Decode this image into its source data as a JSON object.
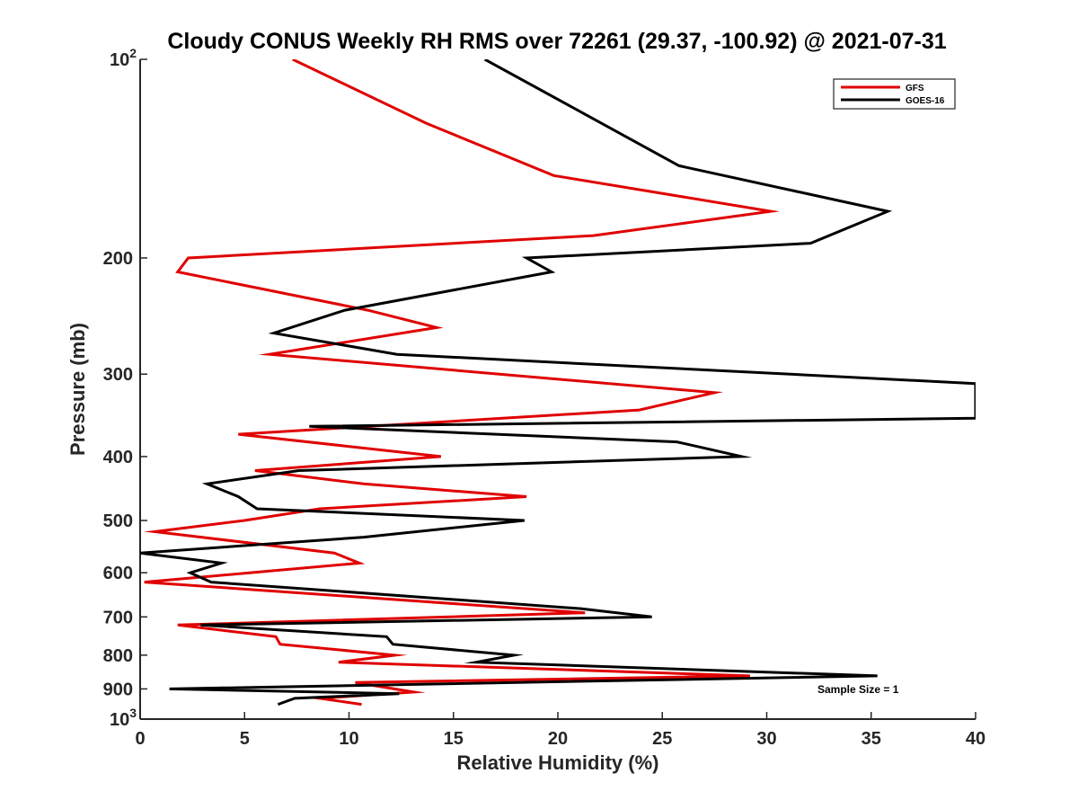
{
  "chart_data": {
    "type": "line",
    "title": "Cloudy CONUS Weekly RH RMS over 72261 (29.37, -100.92) @ 2021-07-31",
    "xlabel": "Relative Humidity (%)",
    "ylabel": "Pressure (mb)",
    "xlim": [
      0,
      40
    ],
    "ylim": [
      100,
      1000
    ],
    "y_scale": "log",
    "y_reversed": true,
    "x_ticks": [
      "0",
      "5",
      "10",
      "15",
      "20",
      "25",
      "30",
      "35",
      "40"
    ],
    "y_ticks": [
      {
        "value": 100,
        "label": "10",
        "sup": "2"
      },
      {
        "value": 200,
        "label": "200"
      },
      {
        "value": 300,
        "label": "300"
      },
      {
        "value": 400,
        "label": "400"
      },
      {
        "value": 500,
        "label": "500"
      },
      {
        "value": 600,
        "label": "600"
      },
      {
        "value": 700,
        "label": "700"
      },
      {
        "value": 800,
        "label": "800"
      },
      {
        "value": 900,
        "label": "900"
      },
      {
        "value": 1000,
        "label": "10",
        "sup": "3"
      }
    ],
    "legend_position": "top-right",
    "annotation": "Sample Size = 1",
    "series": [
      {
        "name": "GFS",
        "color": "#e00000",
        "points": [
          [
            7.3,
            100
          ],
          [
            13.7,
            125
          ],
          [
            19.8,
            150
          ],
          [
            30.2,
            170
          ],
          [
            21.7,
            185
          ],
          [
            2.3,
            200
          ],
          [
            1.8,
            210
          ],
          [
            10.9,
            240
          ],
          [
            14.2,
            255
          ],
          [
            6.2,
            280
          ],
          [
            27.5,
            320
          ],
          [
            23.9,
            340
          ],
          [
            4.7,
            370
          ],
          [
            14.4,
            400
          ],
          [
            5.5,
            420
          ],
          [
            10.7,
            440
          ],
          [
            18.5,
            460
          ],
          [
            8.6,
            480
          ],
          [
            5.0,
            500
          ],
          [
            0.7,
            520
          ],
          [
            9.3,
            560
          ],
          [
            10.5,
            580
          ],
          [
            0.2,
            620
          ],
          [
            21.3,
            690
          ],
          [
            1.8,
            720
          ],
          [
            6.5,
            750
          ],
          [
            6.7,
            770
          ],
          [
            12.2,
            800
          ],
          [
            9.5,
            820
          ],
          [
            29.2,
            860
          ],
          [
            10.3,
            880
          ],
          [
            13.1,
            910
          ],
          [
            8.6,
            930
          ],
          [
            10.6,
            950
          ]
        ]
      },
      {
        "name": "GOES-16",
        "color": "#000000",
        "points": [
          [
            16.5,
            100
          ],
          [
            25.8,
            145
          ],
          [
            35.8,
            170
          ],
          [
            32.1,
            190
          ],
          [
            18.5,
            200
          ],
          [
            19.7,
            210
          ],
          [
            9.8,
            240
          ],
          [
            6.4,
            260
          ],
          [
            12.3,
            280
          ],
          [
            40.0,
            310
          ],
          [
            40.0,
            350
          ],
          [
            8.1,
            360
          ],
          [
            25.7,
            380
          ],
          [
            28.8,
            400
          ],
          [
            7.6,
            420
          ],
          [
            3.2,
            440
          ],
          [
            4.7,
            460
          ],
          [
            5.6,
            480
          ],
          [
            18.4,
            500
          ],
          [
            10.7,
            530
          ],
          [
            0.0,
            560
          ],
          [
            3.9,
            580
          ],
          [
            2.4,
            600
          ],
          [
            3.4,
            620
          ],
          [
            21.1,
            680
          ],
          [
            24.5,
            700
          ],
          [
            2.9,
            720
          ],
          [
            11.8,
            750
          ],
          [
            12.1,
            770
          ],
          [
            17.9,
            800
          ],
          [
            16.1,
            820
          ],
          [
            35.3,
            860
          ],
          [
            1.4,
            900
          ],
          [
            12.4,
            915
          ],
          [
            7.4,
            930
          ],
          [
            6.6,
            950
          ]
        ]
      }
    ]
  }
}
